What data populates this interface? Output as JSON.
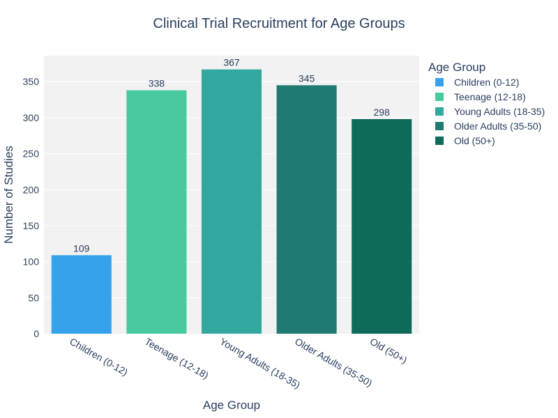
{
  "chart_data": {
    "type": "bar",
    "title": "Clinical Trial Recruitment for Age Groups",
    "xlabel": "Age Group",
    "ylabel": "Number of Studies",
    "categories": [
      "Children (0-12)",
      "Teenage (12-18)",
      "Young Adults (18-35)",
      "Older Adults (35-50)",
      "Old (50+)"
    ],
    "values": [
      109,
      338,
      367,
      345,
      298
    ],
    "colors": [
      "#36a2eb",
      "#48c9a0",
      "#33a8a0",
      "#1f7a73",
      "#0e6b5a"
    ],
    "ylim": [
      0,
      386
    ],
    "yticks": [
      0,
      50,
      100,
      150,
      200,
      250,
      300,
      350
    ],
    "grid": true,
    "legend": {
      "title": "Age Group",
      "placement": "top-right",
      "entries": [
        "Children (0-12)",
        "Teenage (12-18)",
        "Young Adults (18-35)",
        "Older Adults (35-50)",
        "Old (50+)"
      ]
    },
    "plot_background": "#f2f2f2"
  }
}
